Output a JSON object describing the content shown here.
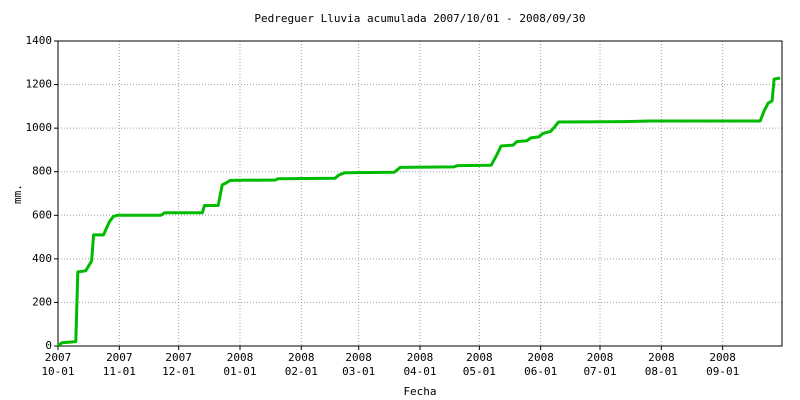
{
  "chart_data": {
    "type": "line",
    "title": "Pedreguer Lluvia acumulada 2007/10/01 - 2008/09/30",
    "x_label": "Fecha",
    "y_label": "mm.",
    "color": "#00bb00",
    "grid": true,
    "x": [
      "2007-10-01",
      "2007-10-03",
      "2007-10-10",
      "2007-10-11",
      "2007-10-15",
      "2007-10-18",
      "2007-10-19",
      "2007-10-24",
      "2007-10-27",
      "2007-10-29",
      "2007-10-31",
      "2007-11-22",
      "2007-11-24",
      "2007-12-13",
      "2007-12-14",
      "2007-12-21",
      "2007-12-23",
      "2007-12-25",
      "2007-12-27",
      "2008-01-19",
      "2008-01-20",
      "2008-02-18",
      "2008-02-20",
      "2008-02-23",
      "2008-03-19",
      "2008-03-22",
      "2008-04-18",
      "2008-04-20",
      "2008-05-07",
      "2008-05-10",
      "2008-05-12",
      "2008-05-18",
      "2008-05-20",
      "2008-05-25",
      "2008-05-27",
      "2008-05-31",
      "2008-06-02",
      "2008-06-06",
      "2008-06-08",
      "2008-06-10",
      "2008-07-13",
      "2008-07-27",
      "2008-09-20",
      "2008-09-22",
      "2008-09-24",
      "2008-09-26",
      "2008-09-27",
      "2008-09-30"
    ],
    "values": [
      0,
      15,
      20,
      340,
      345,
      390,
      510,
      510,
      570,
      595,
      600,
      600,
      612,
      612,
      645,
      645,
      740,
      748,
      760,
      762,
      768,
      770,
      785,
      795,
      798,
      820,
      822,
      828,
      830,
      880,
      918,
      922,
      938,
      942,
      955,
      960,
      975,
      985,
      1005,
      1028,
      1030,
      1033,
      1033,
      1080,
      1115,
      1125,
      1225,
      1230
    ],
    "xlim": [
      "2007-10-01",
      "2008-10-01"
    ],
    "xticks": [
      {
        "value": "2007-10-01",
        "label": [
          "2007",
          "10-01"
        ]
      },
      {
        "value": "2007-11-01",
        "label": [
          "2007",
          "11-01"
        ]
      },
      {
        "value": "2007-12-01",
        "label": [
          "2007",
          "12-01"
        ]
      },
      {
        "value": "2008-01-01",
        "label": [
          "2008",
          "01-01"
        ]
      },
      {
        "value": "2008-02-01",
        "label": [
          "2008",
          "02-01"
        ]
      },
      {
        "value": "2008-03-01",
        "label": [
          "2008",
          "03-01"
        ]
      },
      {
        "value": "2008-04-01",
        "label": [
          "2008",
          "04-01"
        ]
      },
      {
        "value": "2008-05-01",
        "label": [
          "2008",
          "05-01"
        ]
      },
      {
        "value": "2008-06-01",
        "label": [
          "2008",
          "06-01"
        ]
      },
      {
        "value": "2008-07-01",
        "label": [
          "2008",
          "07-01"
        ]
      },
      {
        "value": "2008-08-01",
        "label": [
          "2008",
          "08-01"
        ]
      },
      {
        "value": "2008-09-01",
        "label": [
          "2008",
          "09-01"
        ]
      }
    ],
    "ylim": [
      0,
      1400
    ],
    "yticks": [
      0,
      200,
      400,
      600,
      800,
      1000,
      1200,
      1400
    ]
  }
}
